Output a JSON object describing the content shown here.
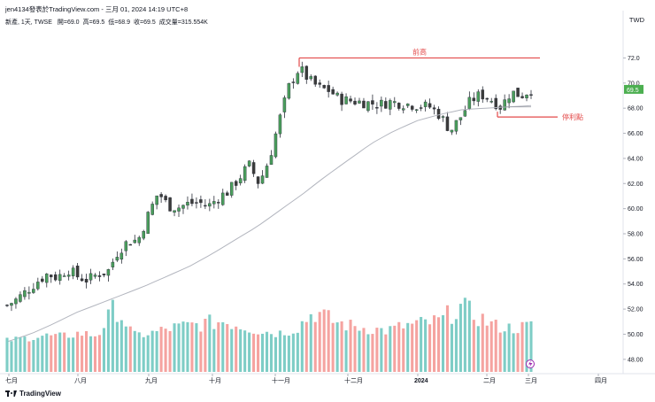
{
  "header": {
    "title": "jen4134發表於TradingView.com - 三月 01, 2024 14:19 UTC+8",
    "symbol_info": "新產, 1天, TWSE",
    "ohlc": [
      {
        "label": "開",
        "value": "69.0"
      },
      {
        "label": "高",
        "value": "69.5"
      },
      {
        "label": "低",
        "value": "68.9"
      },
      {
        "label": "收",
        "value": "69.5"
      },
      {
        "label": "成交量",
        "value": "315.554K"
      }
    ],
    "currency": "TWD"
  },
  "footer": {
    "brand": "TradingView"
  },
  "colors": {
    "up": "#26a69a",
    "down": "#ef5350",
    "up_body": "#4a9e5c",
    "down_body": "#3b3b3b",
    "vol_up": "#7ecdc6",
    "vol_down": "#f5a3a0",
    "ma": "#b2b5be",
    "annotation": "#e34a4a",
    "price_tag": "#4caf50"
  },
  "chart_data": {
    "type": "candlestick",
    "y_ticks": [
      "48.00",
      "50.00",
      "52.00",
      "54.00",
      "56.00",
      "58.00",
      "60.00",
      "62.00",
      "64.00",
      "66.00",
      "68.00",
      "70.0",
      "72.0"
    ],
    "y_range": [
      47.0,
      74.5
    ],
    "x_ticks": [
      "七月",
      "八月",
      "九月",
      "十月",
      "十一月",
      "十二月",
      "2024",
      "二月",
      "三月",
      "四月"
    ],
    "last_price": "69.5",
    "annotations": [
      {
        "label": "前高",
        "price": 72.0
      },
      {
        "label": "停利點",
        "price": 67.3
      }
    ],
    "price_path": [
      52.3,
      52.8,
      53.5,
      54.2,
      54.8,
      54.5,
      55.2,
      54.6,
      54.3,
      54.8,
      55.0,
      56.6,
      57.4,
      57.5,
      59.5,
      61.3,
      60.2,
      60.1,
      60.4,
      60.5,
      60.2,
      60.9,
      61.4,
      62.4,
      63.5,
      62.0,
      63.9,
      67.0,
      69.8,
      71.2,
      70.2,
      69.6,
      69.4,
      68.7,
      68.6,
      68.5,
      68.4,
      68.3,
      68.5,
      68.4,
      68.3,
      68.2,
      68.1,
      67.4,
      66.2,
      67.3,
      68.6,
      69.1,
      68.7,
      68.1,
      69.3,
      69.0,
      69.5
    ],
    "ma_path": [
      49.4,
      50.0,
      50.8,
      51.7,
      52.4,
      53.1,
      53.8,
      54.6,
      55.4,
      56.4,
      57.5,
      58.6,
      59.9,
      61.2,
      62.6,
      63.9,
      65.2,
      66.2,
      67.0,
      67.5,
      67.9,
      68.0,
      68.1,
      68.2
    ],
    "volume_max": "about 14 units",
    "volume_pattern": [
      "low July",
      "high spike mid-August",
      "rising September",
      "peak early November",
      "December moderate",
      "late January peak",
      "early March spike"
    ]
  }
}
